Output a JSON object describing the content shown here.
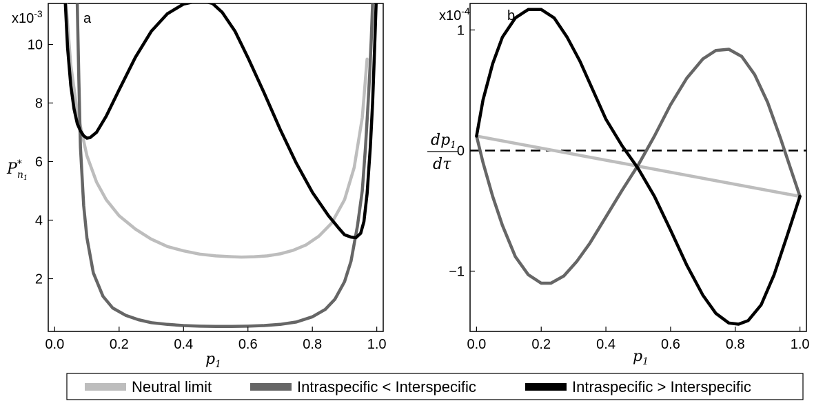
{
  "chart_data": [
    {
      "type": "line",
      "panel_label": "a",
      "scale_label": "x10",
      "scale_exponent": "-3",
      "ylabel_main": "P",
      "ylabel_sup": "*",
      "ylabel_sub": "n",
      "ylabel_subsub": "1",
      "xlabel_main": "p",
      "xlabel_sub": "1",
      "xlim": [
        -0.02,
        1.02
      ],
      "ylim": [
        0.2,
        11.4
      ],
      "xticks": [
        0.0,
        0.2,
        0.4,
        0.6,
        0.8,
        1.0
      ],
      "xtick_labels": [
        "0.0",
        "0.2",
        "0.4",
        "0.6",
        "0.8",
        "1.0"
      ],
      "yticks": [
        2,
        4,
        6,
        8,
        10
      ],
      "ytick_labels": [
        "2",
        "4",
        "6",
        "8",
        "10"
      ],
      "series": [
        {
          "name": "Neutral limit",
          "color": "#bdbdbd",
          "x": [
            0.035,
            0.05,
            0.07,
            0.1,
            0.13,
            0.16,
            0.2,
            0.25,
            0.3,
            0.35,
            0.4,
            0.45,
            0.5,
            0.55,
            0.58,
            0.62,
            0.66,
            0.7,
            0.74,
            0.78,
            0.82,
            0.86,
            0.9,
            0.93,
            0.955,
            0.97
          ],
          "y": [
            11.4,
            9.3,
            7.7,
            6.2,
            5.3,
            4.7,
            4.15,
            3.7,
            3.35,
            3.1,
            2.95,
            2.84,
            2.78,
            2.75,
            2.74,
            2.75,
            2.78,
            2.85,
            2.97,
            3.15,
            3.45,
            3.9,
            4.7,
            5.8,
            7.5,
            9.5
          ]
        },
        {
          "name": "Intraspecific < Interspecific",
          "color": "#666666",
          "x": [
            0.07,
            0.075,
            0.08,
            0.09,
            0.1,
            0.12,
            0.15,
            0.18,
            0.22,
            0.26,
            0.3,
            0.35,
            0.4,
            0.45,
            0.5,
            0.55,
            0.6,
            0.65,
            0.7,
            0.75,
            0.8,
            0.84,
            0.87,
            0.9,
            0.92,
            0.94,
            0.955,
            0.965,
            0.972,
            0.978,
            0.983,
            0.987
          ],
          "y": [
            11.4,
            8.8,
            6.5,
            4.5,
            3.4,
            2.2,
            1.4,
            1.0,
            0.75,
            0.6,
            0.5,
            0.44,
            0.4,
            0.38,
            0.37,
            0.37,
            0.38,
            0.4,
            0.44,
            0.52,
            0.7,
            0.95,
            1.3,
            1.9,
            2.6,
            3.8,
            5.0,
            6.5,
            7.8,
            9.0,
            10.2,
            11.4
          ]
        },
        {
          "name": "Intraspecific > Interspecific",
          "color": "#000000",
          "x": [
            0.033,
            0.04,
            0.05,
            0.06,
            0.07,
            0.08,
            0.09,
            0.1,
            0.11,
            0.13,
            0.16,
            0.2,
            0.25,
            0.3,
            0.35,
            0.4,
            0.43,
            0.46,
            0.49,
            0.52,
            0.56,
            0.6,
            0.65,
            0.7,
            0.75,
            0.8,
            0.85,
            0.88,
            0.9,
            0.92,
            0.935,
            0.95,
            0.96,
            0.97,
            0.98,
            0.987,
            0.993,
            0.998
          ],
          "y": [
            11.4,
            9.9,
            8.6,
            7.8,
            7.3,
            7.05,
            6.88,
            6.8,
            6.82,
            7.0,
            7.55,
            8.45,
            9.55,
            10.45,
            11.05,
            11.38,
            11.45,
            11.48,
            11.4,
            11.1,
            10.45,
            9.55,
            8.35,
            7.1,
            5.95,
            4.95,
            4.15,
            3.75,
            3.5,
            3.42,
            3.4,
            3.55,
            3.95,
            4.9,
            6.5,
            8.0,
            9.8,
            11.4
          ]
        }
      ]
    },
    {
      "type": "line",
      "panel_label": "b",
      "scale_label": "x10",
      "scale_exponent": "-4",
      "ylabel_num_main": "dp",
      "ylabel_num_sub": "1",
      "ylabel_den": "dτ",
      "xlabel_main": "p",
      "xlabel_sub": "1",
      "xlim": [
        -0.02,
        1.02
      ],
      "ylim": [
        -1.5,
        1.22
      ],
      "xticks": [
        0.0,
        0.2,
        0.4,
        0.6,
        0.8,
        1.0
      ],
      "xtick_labels": [
        "0.0",
        "0.2",
        "0.4",
        "0.6",
        "0.8",
        "1.0"
      ],
      "yticks": [
        -1,
        0,
        1
      ],
      "ytick_labels": [
        "−1",
        "0",
        "1"
      ],
      "reference_line": {
        "y": 0,
        "style": "dashed"
      },
      "series": [
        {
          "name": "Neutral limit",
          "color": "#bdbdbd",
          "x": [
            0.0,
            1.0
          ],
          "y": [
            0.12,
            -0.38
          ]
        },
        {
          "name": "Intraspecific < Interspecific",
          "color": "#666666",
          "x": [
            0.0,
            0.02,
            0.05,
            0.08,
            0.12,
            0.16,
            0.2,
            0.23,
            0.27,
            0.31,
            0.35,
            0.4,
            0.45,
            0.5,
            0.55,
            0.6,
            0.65,
            0.7,
            0.74,
            0.78,
            0.82,
            0.86,
            0.9,
            0.94,
            0.97,
            1.0
          ],
          "y": [
            0.12,
            -0.1,
            -0.38,
            -0.62,
            -0.88,
            -1.03,
            -1.1,
            -1.1,
            -1.04,
            -0.92,
            -0.77,
            -0.55,
            -0.33,
            -0.12,
            0.12,
            0.38,
            0.6,
            0.76,
            0.83,
            0.84,
            0.78,
            0.63,
            0.4,
            0.1,
            -0.14,
            -0.38
          ]
        },
        {
          "name": "Intraspecific > Interspecific",
          "color": "#000000",
          "x": [
            0.0,
            0.02,
            0.05,
            0.08,
            0.12,
            0.16,
            0.2,
            0.24,
            0.28,
            0.32,
            0.36,
            0.4,
            0.45,
            0.5,
            0.55,
            0.6,
            0.65,
            0.7,
            0.74,
            0.78,
            0.81,
            0.84,
            0.88,
            0.92,
            0.96,
            1.0
          ],
          "y": [
            0.12,
            0.42,
            0.72,
            0.94,
            1.1,
            1.17,
            1.17,
            1.1,
            0.94,
            0.74,
            0.5,
            0.26,
            0.04,
            -0.15,
            -0.38,
            -0.66,
            -0.95,
            -1.2,
            -1.35,
            -1.43,
            -1.44,
            -1.41,
            -1.28,
            -1.03,
            -0.71,
            -0.38
          ]
        }
      ]
    }
  ],
  "legend": {
    "placement": "bottom",
    "entries": [
      {
        "label": "Neutral limit",
        "color": "#bdbdbd"
      },
      {
        "label": "Intraspecific < Interspecific",
        "color": "#666666"
      },
      {
        "label": "Intraspecific > Interspecific",
        "color": "#000000"
      }
    ]
  }
}
